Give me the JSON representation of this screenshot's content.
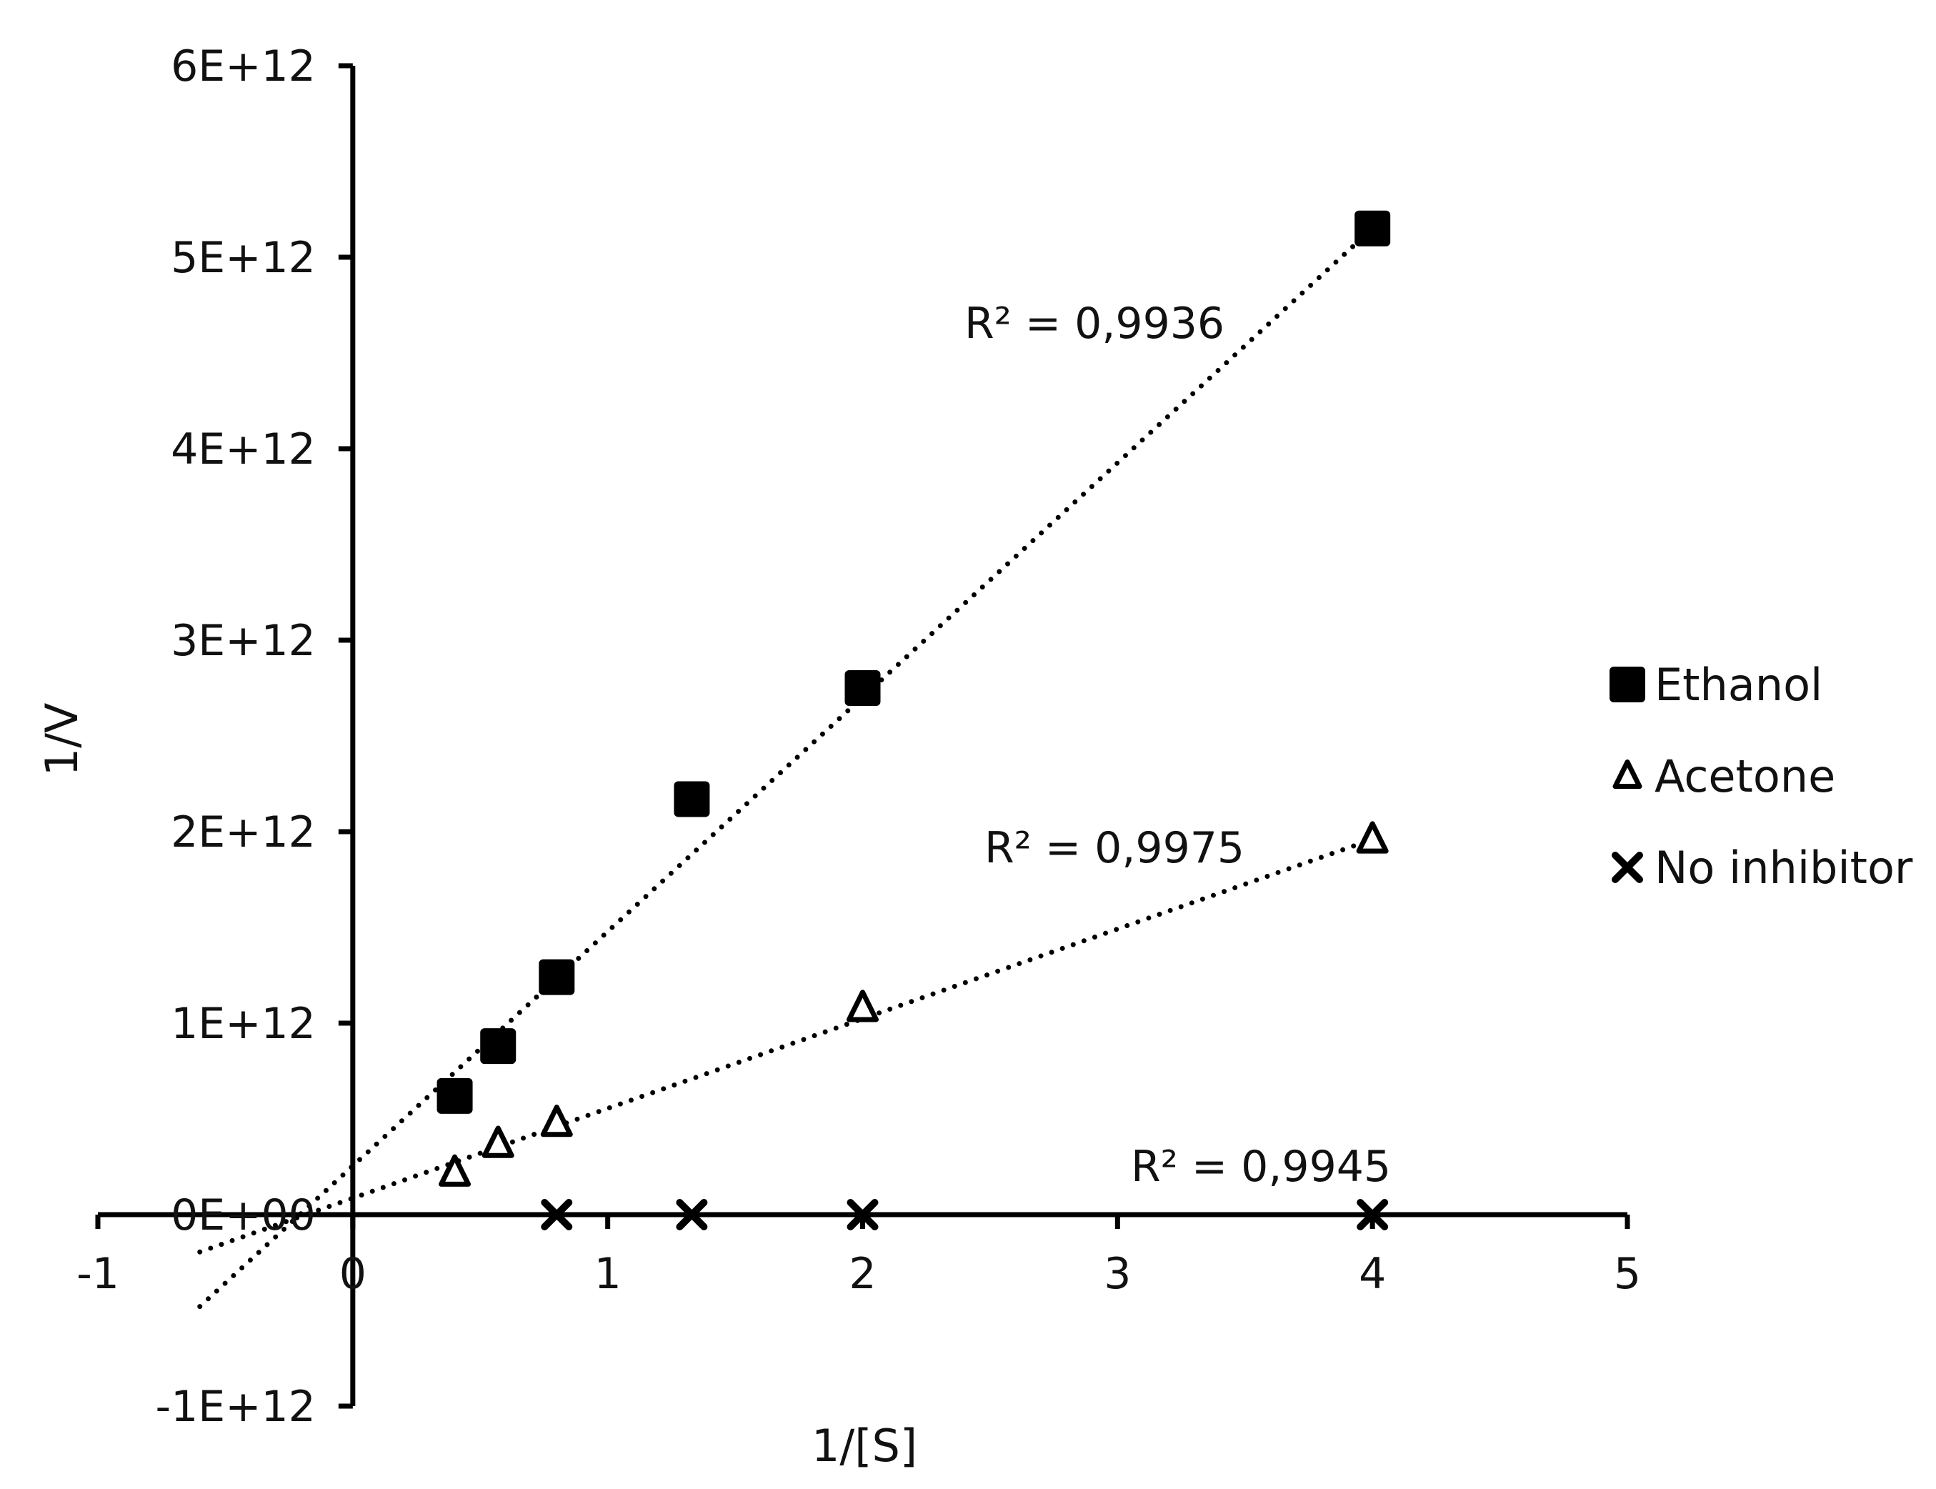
{
  "chart_data": {
    "type": "scatter",
    "title": "",
    "xlabel": "1/[S]",
    "ylabel": "1/V",
    "xlim": [
      -1,
      5
    ],
    "ylim": [
      -1000000000000.0,
      6000000000000.0
    ],
    "x_ticks": [
      -1,
      0,
      1,
      2,
      3,
      4,
      5
    ],
    "x_tick_labels": [
      "-1",
      "0",
      "1",
      "2",
      "3",
      "4",
      "5"
    ],
    "y_ticks": [
      -1000000000000.0,
      0,
      1000000000000.0,
      2000000000000.0,
      3000000000000.0,
      4000000000000.0,
      5000000000000.0,
      6000000000000.0
    ],
    "y_tick_labels": [
      "-1E+12",
      "0E+00",
      "1E+12",
      "2E+12",
      "3E+12",
      "4E+12",
      "5E+12",
      "6E+12"
    ],
    "grid": false,
    "legend_position": "right",
    "series": [
      {
        "name": "Ethanol",
        "marker": "square",
        "color": "#000000",
        "x": [
          0.4,
          0.57,
          0.8,
          1.33,
          2,
          4
        ],
        "y": [
          620000000000.0,
          880000000000.0,
          1240000000000.0,
          2170000000000.0,
          2750000000000.0,
          5150000000000.0
        ],
        "trendline": {
          "x": [
            -0.6,
            4
          ],
          "y": [
            -480000000000.0,
            5150000000000.0
          ]
        },
        "r2_label": "R² = 0,9936"
      },
      {
        "name": "Acetone",
        "marker": "triangle",
        "color": "#000000",
        "x": [
          0.4,
          0.57,
          0.8,
          2,
          4
        ],
        "y": [
          220000000000.0,
          370000000000.0,
          480000000000.0,
          1080000000000.0,
          1960000000000.0
        ],
        "trendline": {
          "x": [
            -0.6,
            4
          ],
          "y": [
            -195000000000.0,
            1960000000000.0
          ]
        },
        "r2_label": "R² = 0,9975"
      },
      {
        "name": "No inhibitor",
        "marker": "x",
        "color": "#000000",
        "x": [
          0.8,
          1.33,
          2,
          4
        ],
        "y": [
          0,
          0,
          0,
          0
        ],
        "trendline": {
          "x": [
            -0.6,
            4
          ],
          "y": [
            0,
            0
          ]
        },
        "r2_label": "R² = 0,9945"
      }
    ]
  }
}
